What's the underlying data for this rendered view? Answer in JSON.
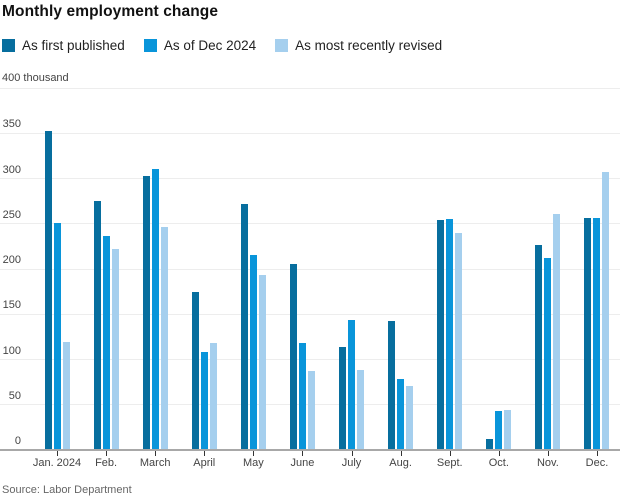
{
  "title": "Monthly employment change",
  "unit_label": "400 thousand",
  "source": "Source: Labor Department",
  "legend": [
    {
      "label": "As first published",
      "color": "#076e9e"
    },
    {
      "label": "As of Dec 2024",
      "color": "#0995da"
    },
    {
      "label": "As most recently revised",
      "color": "#a5cfee"
    }
  ],
  "chart_data": {
    "type": "bar",
    "title": "Monthly employment change",
    "ylabel": "400 thousand",
    "categories": [
      "Jan. 2024",
      "Feb.",
      "March",
      "April",
      "May",
      "June",
      "July",
      "Aug.",
      "Sept.",
      "Oct.",
      "Nov.",
      "Dec."
    ],
    "series": [
      {
        "name": "As first published",
        "color": "#076e9e",
        "values": [
          353,
          275,
          303,
          175,
          272,
          206,
          114,
          142,
          254,
          12,
          227,
          256
        ]
      },
      {
        "name": "As of Dec 2024",
        "color": "#0995da",
        "values": [
          251,
          236,
          310,
          108,
          216,
          118,
          144,
          78,
          255,
          43,
          212,
          256
        ]
      },
      {
        "name": "As most recently revised",
        "color": "#a5cfee",
        "values": [
          119,
          222,
          246,
          118,
          193,
          87,
          88,
          71,
          240,
          44,
          261,
          307
        ]
      }
    ],
    "ylim": [
      0,
      400
    ],
    "yticks": [
      0,
      50,
      100,
      150,
      200,
      250,
      300,
      350,
      400
    ],
    "ytick_labels": [
      "0",
      "50",
      "100",
      "150",
      "200",
      "250",
      "300",
      "350",
      ""
    ],
    "grid": true,
    "legend_position": "top"
  }
}
